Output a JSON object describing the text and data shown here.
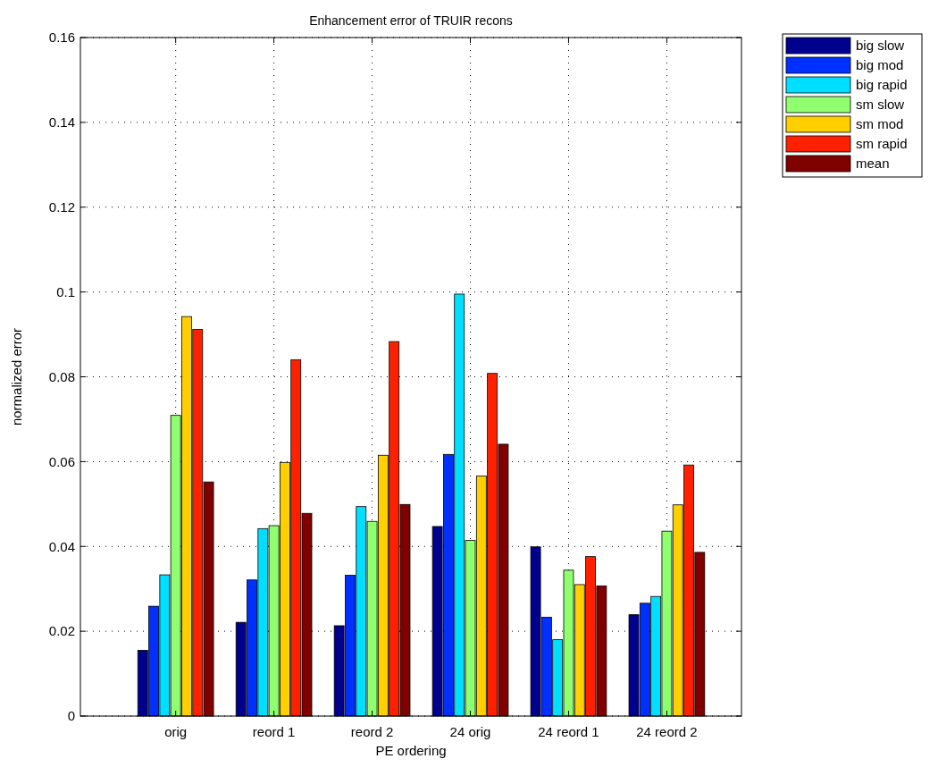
{
  "chart_data": {
    "type": "bar",
    "title": "Enhancement error of TRUIR recons",
    "xlabel": "PE ordering",
    "ylabel": "normalized error",
    "categories": [
      "orig",
      "reord 1",
      "reord 2",
      "24 orig",
      "24 reord 1",
      "24 reord 2"
    ],
    "series": [
      {
        "name": "big slow",
        "color": "#00008f",
        "values": [
          0.0155,
          0.0221,
          0.0213,
          0.0447,
          0.0399,
          0.0239
        ]
      },
      {
        "name": "big mod",
        "color": "#0030ff",
        "values": [
          0.0259,
          0.0321,
          0.0332,
          0.0617,
          0.0233,
          0.0266
        ]
      },
      {
        "name": "big rapid",
        "color": "#00dfff",
        "values": [
          0.0333,
          0.0442,
          0.0494,
          0.0995,
          0.018,
          0.0282
        ]
      },
      {
        "name": "sm slow",
        "color": "#8fff6f",
        "values": [
          0.0709,
          0.0449,
          0.0459,
          0.0414,
          0.0344,
          0.0436
        ]
      },
      {
        "name": "sm mod",
        "color": "#ffcf00",
        "values": [
          0.0942,
          0.0598,
          0.0615,
          0.0566,
          0.031,
          0.0498
        ]
      },
      {
        "name": "sm rapid",
        "color": "#ff2000",
        "values": [
          0.0912,
          0.084,
          0.0883,
          0.0808,
          0.0376,
          0.0592
        ]
      },
      {
        "name": "mean",
        "color": "#800000",
        "values": [
          0.0552,
          0.0478,
          0.0499,
          0.0641,
          0.0307,
          0.0386
        ]
      }
    ],
    "ylim": [
      0,
      0.16
    ],
    "yticks": [
      0,
      0.02,
      0.04,
      0.06,
      0.08,
      {
        "value": 0.1,
        "label": "0.1"
      },
      0.12,
      0.14,
      0.16
    ],
    "grid": true,
    "legend": "top right"
  }
}
